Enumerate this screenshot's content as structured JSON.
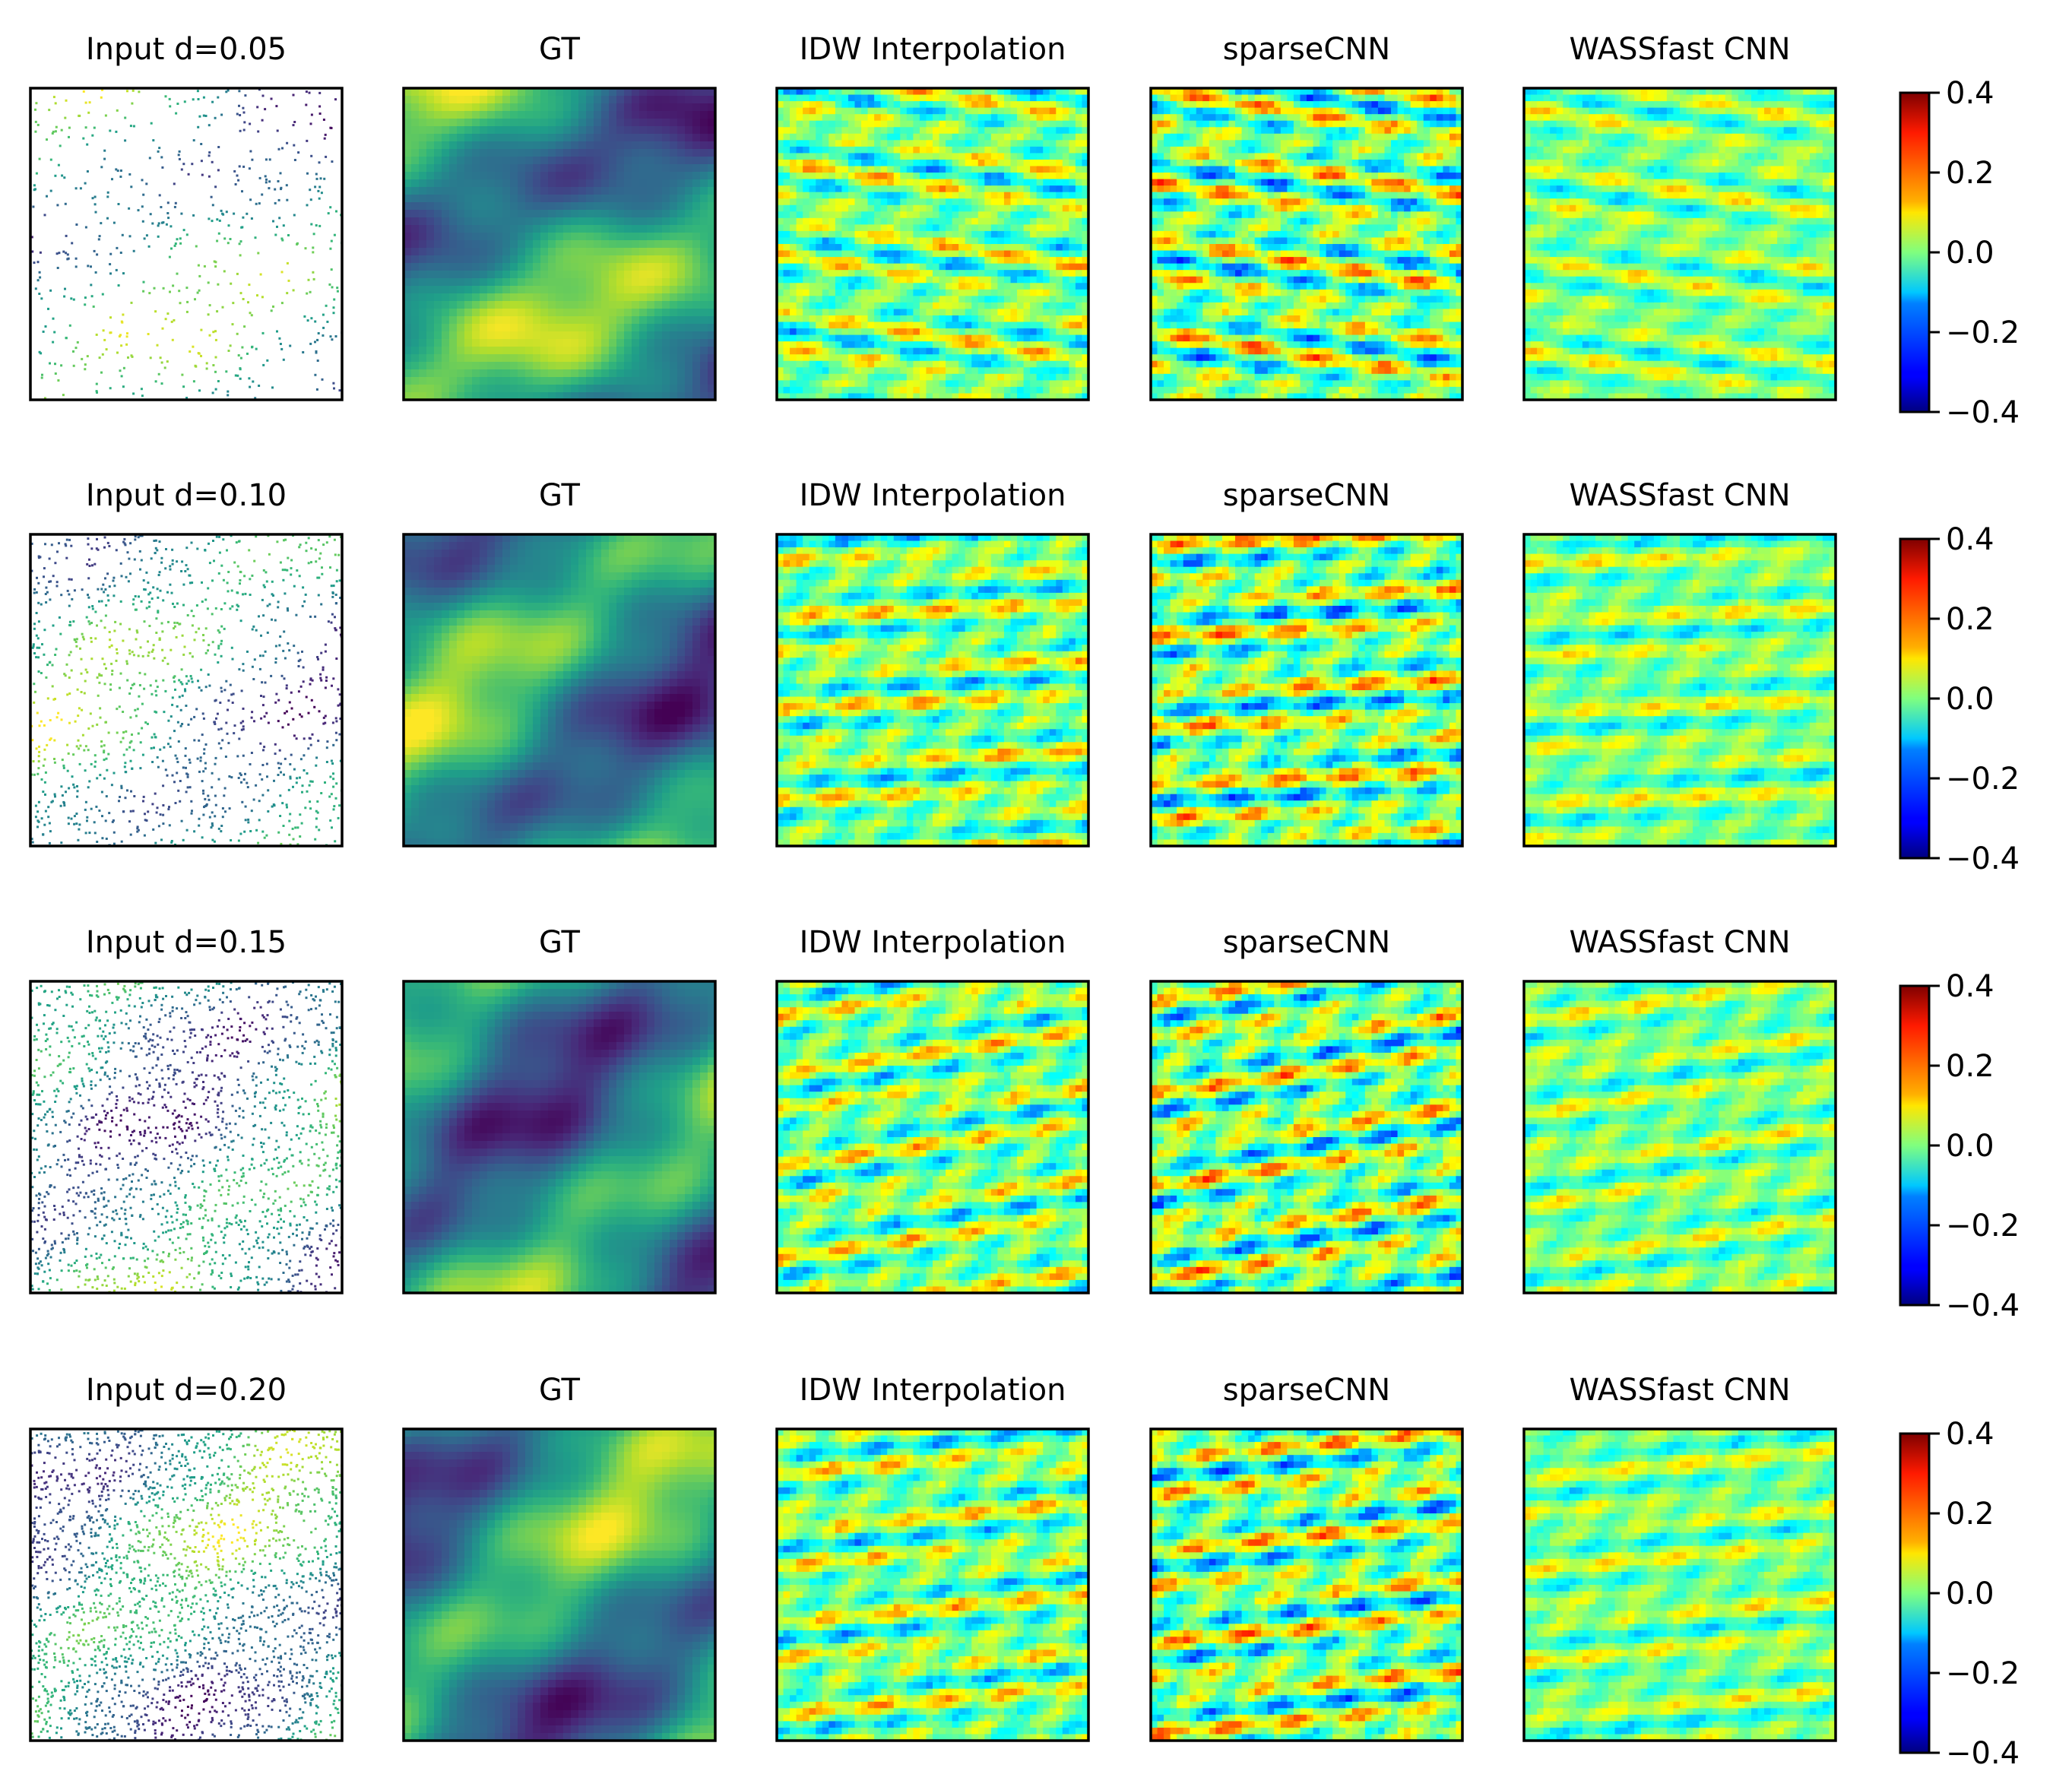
{
  "chart_data": {
    "type": "heatmap",
    "layout": "4 rows x 5 columns of image panels, one colorbar per row",
    "column_titles_by_row": [
      [
        "Input d=0.05",
        "GT",
        "IDW Interpolation",
        "sparseCNN",
        "WASSfast CNN"
      ],
      [
        "Input d=0.10",
        "GT",
        "IDW Interpolation",
        "sparseCNN",
        "WASSfast CNN"
      ],
      [
        "Input d=0.15",
        "GT",
        "IDW Interpolation",
        "sparseCNN",
        "WASSfast CNN"
      ],
      [
        "Input d=0.20",
        "GT",
        "IDW Interpolation",
        "sparseCNN",
        "WASSfast CNN"
      ]
    ],
    "input_densities": [
      0.05,
      0.1,
      0.15,
      0.2
    ],
    "colormaps": {
      "input": "viridis (scattered points)",
      "GT": "viridis",
      "IDW Interpolation": "jet",
      "sparseCNN": "jet",
      "WASSfast CNN": "jet"
    },
    "colorbar": {
      "colormap": "jet",
      "range": [
        -0.4,
        0.4
      ],
      "ticks": [
        0.4,
        0.2,
        0.0,
        -0.2,
        -0.4
      ],
      "tick_labels": [
        "0.4",
        "0.2",
        "0.0",
        "−0.2",
        "−0.4"
      ]
    },
    "axes_ticks_shown": false,
    "grid": false
  }
}
